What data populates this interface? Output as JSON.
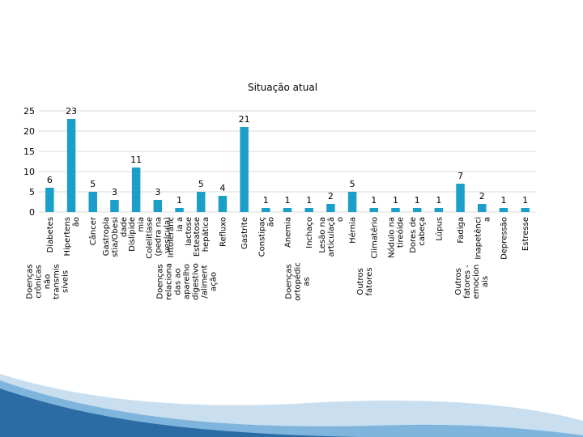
{
  "chart_data": {
    "type": "bar",
    "title": "Situação atual",
    "xlabel": "",
    "ylabel": "",
    "ylim": [
      0,
      25
    ],
    "yticks": [
      0,
      5,
      10,
      15,
      20,
      25
    ],
    "grid": true,
    "legend": "none",
    "bar_color": "#1b9fc8",
    "categories": [
      "Doenças crônicas não transmissíveis — Diabetes",
      "Hipertensão",
      "Câncer",
      "Gastroplastia/Obesidade",
      "Dislipidemia",
      "Doenças relacionadas ao aparelho digestivo/alimentação — Colelitíase (pedra na vesícula)",
      "Intolerância à lactose",
      "Esteatose hepática",
      "Refluxo",
      "Gastrite",
      "Constipação",
      "Anemia",
      "Doenças ortopédicas — Inchaço",
      "Lesão na articulação",
      "Hérnia",
      "Outros fatores — Climatério",
      "Nódulo na tireóide",
      "Dores de cabeça",
      "Lúpus",
      "Fadiga",
      "Outros fatores - emocionais — Inapetência",
      "Depressão",
      "Estresse"
    ],
    "values": [
      6,
      23,
      5,
      3,
      11,
      3,
      1,
      5,
      4,
      21,
      1,
      1,
      1,
      2,
      5,
      1,
      1,
      1,
      1,
      7,
      2,
      1,
      1
    ],
    "tick_labels": [
      [
        "Diabetes"
      ],
      [
        "Hipertens",
        "ão"
      ],
      [
        "Câncer"
      ],
      [
        "Gastropla",
        "stia/Obesi",
        "dade"
      ],
      [
        "Dislipide",
        "mia"
      ],
      [
        "Colelitíase",
        "(pedra na",
        "vesícula)"
      ],
      [
        "Intolerânc",
        "ia a",
        "lactose"
      ],
      [
        "Esteatose",
        "hepática"
      ],
      [
        "Refluxo"
      ],
      [
        "Gastrite"
      ],
      [
        "Constipaç",
        "ão"
      ],
      [
        "Anemia"
      ],
      [
        "Inchaço"
      ],
      [
        "Lesão na",
        "articulaçã",
        "o"
      ],
      [
        "Hérnia"
      ],
      [
        "Climatério"
      ],
      [
        "Nódulo na",
        "tireóide"
      ],
      [
        "Dores de",
        "cabeça"
      ],
      [
        "Lúpus"
      ],
      [
        "Fadiga"
      ],
      [
        "Inapetênci",
        "a"
      ],
      [
        "Depressão"
      ],
      [
        "Estresse"
      ]
    ],
    "groups": [
      {
        "label": [
          "Doenças",
          "crônicas",
          "não",
          "transmis",
          "síveis"
        ],
        "start": 0,
        "end": 4
      },
      {
        "label": [
          "Doenças",
          "relaciona",
          "das ao",
          "aparelho",
          "digestivo",
          "/aliment",
          "ação"
        ],
        "start": 5,
        "end": 11
      },
      {
        "label": [
          "Doenças",
          "ortopédic",
          "as"
        ],
        "start": 12,
        "end": 14
      },
      {
        "label": [
          "Outros",
          "fatores"
        ],
        "start": 15,
        "end": 19
      },
      {
        "label": [
          "Outros",
          "fatores -",
          "emocion",
          "ais"
        ],
        "start": 20,
        "end": 22
      }
    ]
  }
}
